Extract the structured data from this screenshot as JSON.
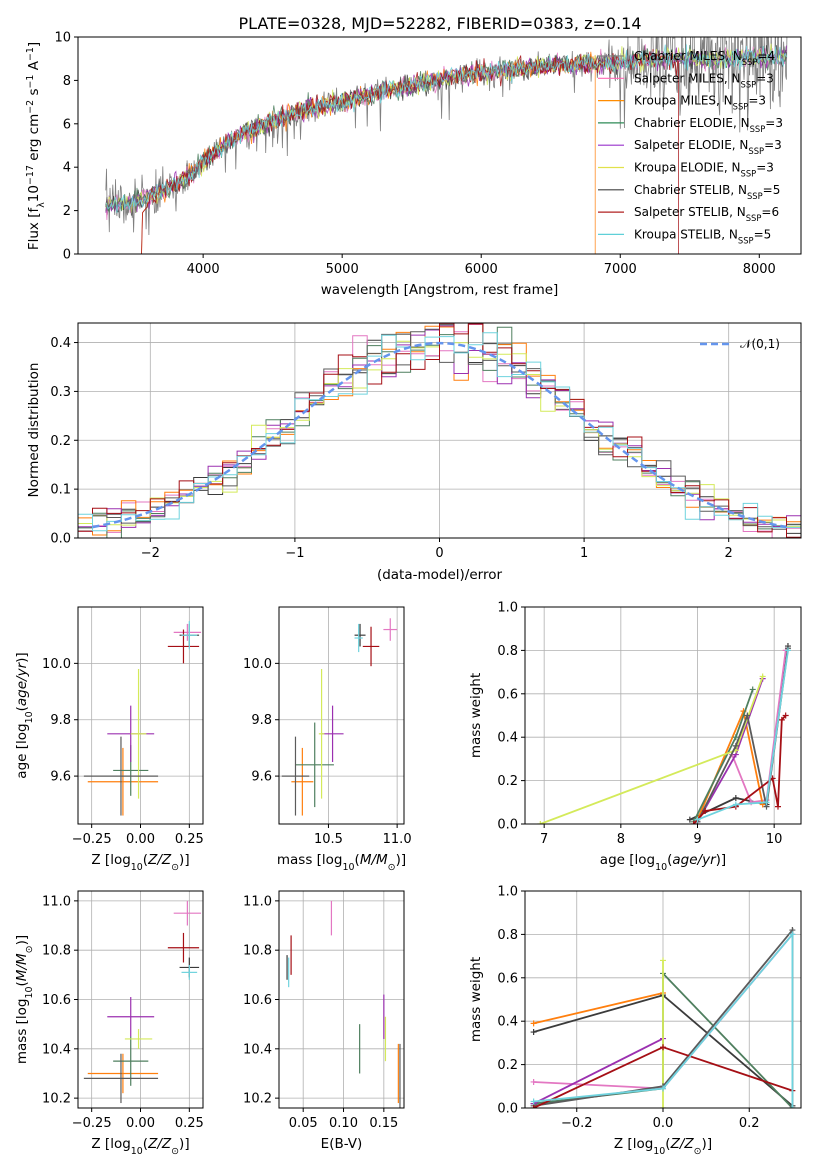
{
  "title": "PLATE=0328, MJD=52282, FIBERID=0383, z=0.14",
  "colors": [
    "#808080",
    "#ff69b4",
    "#ff8c00",
    "#2e8b57",
    "#9932cc",
    "#e1e14b",
    "#404040",
    "#b22222",
    "#5fd0d8"
  ],
  "model_colors": [
    "#3b3b3b",
    "#e377c2",
    "#ff7f0e",
    "#4f7f5f",
    "#9b30b0",
    "#d4ea5a",
    "#5b5b5b",
    "#a50f15",
    "#6fd3de"
  ],
  "legend": [
    {
      "label": "Chabrier MILES, N",
      "sub": "SSP",
      "tail": "=4"
    },
    {
      "label": "Salpeter MILES, N",
      "sub": "SSP",
      "tail": "=3"
    },
    {
      "label": "Kroupa MILES, N",
      "sub": "SSP",
      "tail": "=3"
    },
    {
      "label": "Chabrier ELODIE, N",
      "sub": "SSP",
      "tail": "=3"
    },
    {
      "label": "Salpeter ELODIE, N",
      "sub": "SSP",
      "tail": "=3"
    },
    {
      "label": "Kroupa ELODIE, N",
      "sub": "SSP",
      "tail": "=3"
    },
    {
      "label": "Chabrier STELIB, N",
      "sub": "SSP",
      "tail": "=5"
    },
    {
      "label": "Salpeter STELIB, N",
      "sub": "SSP",
      "tail": "=6"
    },
    {
      "label": "Kroupa STELIB, N",
      "sub": "SSP",
      "tail": "=5"
    }
  ],
  "chart_data": [
    {
      "type": "line",
      "id": "spectrum",
      "xlabel": "wavelength [Angstrom, rest frame]",
      "ylabel": "Flux [f_λ 10^-17 erg cm^-2 s^-1 A^-1]",
      "xlim": [
        3100,
        8300
      ],
      "ylim": [
        0,
        10
      ],
      "xticks": [
        4000,
        5000,
        6000,
        7000,
        8000
      ],
      "yticks": [
        0,
        2,
        4,
        6,
        8,
        10
      ],
      "grid": false,
      "legend_position": "top-right",
      "continuum": {
        "x": [
          3300,
          3500,
          3700,
          3900,
          4100,
          4300,
          4500,
          4700,
          5000,
          5300,
          5600,
          5900,
          6200,
          6500,
          6800,
          7100,
          7400,
          7700,
          8000,
          8200
        ],
        "y": [
          2.2,
          2.4,
          2.9,
          3.6,
          4.8,
          5.6,
          6.1,
          6.6,
          7.0,
          7.5,
          7.9,
          8.3,
          8.5,
          8.7,
          8.8,
          8.9,
          9.0,
          9.0,
          9.1,
          9.1
        ]
      },
      "data_noise": {
        "base": 0.5,
        "blue_extra": 1.2,
        "red_extra": 1.8
      },
      "model_drop": {
        "series": [
          2,
          7
        ],
        "x": [
          6820,
          7420
        ]
      }
    },
    {
      "type": "line",
      "id": "residuals",
      "xlabel": "(data-model)/error",
      "ylabel": "Normed distribution",
      "xlim": [
        -2.5,
        2.5
      ],
      "ylim": [
        0,
        0.44
      ],
      "xticks": [
        -2,
        -1,
        0,
        1,
        2
      ],
      "yticks": [
        0.0,
        0.1,
        0.2,
        0.3,
        0.4
      ],
      "grid": true,
      "legend_position": "top-right",
      "reference_label": "𝒩(0,1)",
      "reference_mean": 0,
      "reference_sigma": 1,
      "bin_width": 0.1,
      "hist_spread": 0.035
    },
    {
      "type": "scatter",
      "id": "age-vs-Z",
      "xlabel": "Z [log10(Z/Z⊙)]",
      "ylabel": "age [log10(age/yr)]",
      "xlim": [
        -0.32,
        0.32
      ],
      "ylim": [
        9.43,
        10.2
      ],
      "xticks": [
        -0.25,
        0.0,
        0.25
      ],
      "yticks": [
        9.6,
        9.8,
        10.0
      ],
      "grid": true,
      "points": [
        {
          "x": 0.25,
          "y": 10.1,
          "xerr": 0.05,
          "yerr": 0.04
        },
        {
          "x": 0.24,
          "y": 10.11,
          "xerr": 0.07,
          "yerr": 0.03
        },
        {
          "x": -0.09,
          "y": 9.58,
          "xerr": 0.18,
          "yerr": 0.12
        },
        {
          "x": -0.05,
          "y": 9.62,
          "xerr": 0.09,
          "yerr": 0.09
        },
        {
          "x": -0.05,
          "y": 9.75,
          "xerr": 0.12,
          "yerr": 0.1
        },
        {
          "x": -0.01,
          "y": 9.75,
          "xerr": 0.04,
          "yerr": 0.23
        },
        {
          "x": -0.1,
          "y": 9.6,
          "xerr": 0.19,
          "yerr": 0.14
        },
        {
          "x": 0.22,
          "y": 10.06,
          "xerr": 0.08,
          "yerr": 0.06
        },
        {
          "x": 0.25,
          "y": 10.1,
          "xerr": 0.04,
          "yerr": 0.05
        }
      ]
    },
    {
      "type": "scatter",
      "id": "age-vs-mass",
      "xlabel": "mass [log10(M/M⊙)]",
      "ylabel": "",
      "xlim": [
        10.14,
        11.05
      ],
      "ylim": [
        9.43,
        10.2
      ],
      "xticks": [
        10.5,
        11.0
      ],
      "yticks": [
        9.6,
        9.8,
        10.0
      ],
      "grid": true,
      "points": [
        {
          "x": 10.73,
          "y": 10.1,
          "xerr": 0.04,
          "yerr": 0.04
        },
        {
          "x": 10.95,
          "y": 10.12,
          "xerr": 0.05,
          "yerr": 0.04
        },
        {
          "x": 10.31,
          "y": 9.58,
          "xerr": 0.08,
          "yerr": 0.12
        },
        {
          "x": 10.4,
          "y": 9.64,
          "xerr": 0.14,
          "yerr": 0.15
        },
        {
          "x": 10.53,
          "y": 9.75,
          "xerr": 0.08,
          "yerr": 0.1
        },
        {
          "x": 10.45,
          "y": 9.75,
          "xerr": 0.02,
          "yerr": 0.23
        },
        {
          "x": 10.26,
          "y": 9.6,
          "xerr": 0.1,
          "yerr": 0.14
        },
        {
          "x": 10.81,
          "y": 10.06,
          "xerr": 0.06,
          "yerr": 0.07
        },
        {
          "x": 10.72,
          "y": 10.09,
          "xerr": 0.03,
          "yerr": 0.05
        }
      ]
    },
    {
      "type": "line",
      "id": "mass-weight-vs-age",
      "xlabel": "age [log10(age/yr)]",
      "ylabel": "mass weight",
      "xlim": [
        6.75,
        10.35
      ],
      "ylim": [
        0,
        1.0
      ],
      "xticks": [
        7,
        8,
        9,
        10
      ],
      "yticks": [
        0.0,
        0.2,
        0.4,
        0.6,
        0.8,
        1.0
      ],
      "grid": true,
      "series": [
        {
          "x": [
            8.9,
            9.5,
            9.9,
            10.18
          ],
          "y": [
            0.02,
            0.12,
            0.09,
            0.82
          ]
        },
        {
          "x": [
            9.45,
            9.7,
            9.9,
            10.15
          ],
          "y": [
            0.32,
            0.1,
            0.11,
            0.8
          ]
        },
        {
          "x": [
            9.0,
            9.6,
            9.85
          ],
          "y": [
            0.02,
            0.52,
            0.09
          ]
        },
        {
          "x": [
            8.95,
            9.5,
            9.72
          ],
          "y": [
            0.01,
            0.4,
            0.62
          ]
        },
        {
          "x": [
            9.0,
            9.5,
            9.85
          ],
          "y": [
            0.01,
            0.32,
            0.67
          ]
        },
        {
          "x": [
            6.95,
            9.5,
            9.85
          ],
          "y": [
            0.0,
            0.34,
            0.68
          ]
        },
        {
          "x": [
            9.0,
            9.5,
            9.65,
            9.9,
            10.18
          ],
          "y": [
            0.01,
            0.36,
            0.5,
            0.08,
            0.81
          ]
        },
        {
          "x": [
            8.95,
            9.1,
            9.5,
            9.98,
            10.05,
            10.1,
            10.15
          ],
          "y": [
            0.0,
            0.06,
            0.08,
            0.21,
            0.08,
            0.48,
            0.5
          ]
        },
        {
          "x": [
            9.0,
            9.5,
            9.9,
            10.18
          ],
          "y": [
            0.02,
            0.09,
            0.1,
            0.8
          ]
        }
      ]
    },
    {
      "type": "scatter",
      "id": "mass-vs-Z",
      "xlabel": "Z [log10(Z/Z⊙)]",
      "ylabel": "mass [log10(M/M⊙)]",
      "xlim": [
        -0.32,
        0.32
      ],
      "ylim": [
        10.16,
        11.04
      ],
      "xticks": [
        -0.25,
        0.0,
        0.25
      ],
      "yticks": [
        10.2,
        10.4,
        10.6,
        10.8,
        11.0
      ],
      "grid": true,
      "points": [
        {
          "x": 0.25,
          "y": 10.73,
          "xerr": 0.05,
          "yerr": 0.04
        },
        {
          "x": 0.24,
          "y": 10.95,
          "xerr": 0.07,
          "yerr": 0.05
        },
        {
          "x": -0.09,
          "y": 10.3,
          "xerr": 0.18,
          "yerr": 0.08
        },
        {
          "x": -0.05,
          "y": 10.35,
          "xerr": 0.09,
          "yerr": 0.1
        },
        {
          "x": -0.05,
          "y": 10.53,
          "xerr": 0.12,
          "yerr": 0.08
        },
        {
          "x": -0.01,
          "y": 10.44,
          "xerr": 0.07,
          "yerr": 0.04
        },
        {
          "x": -0.1,
          "y": 10.28,
          "xerr": 0.19,
          "yerr": 0.1
        },
        {
          "x": 0.22,
          "y": 10.81,
          "xerr": 0.08,
          "yerr": 0.06
        },
        {
          "x": 0.25,
          "y": 10.71,
          "xerr": 0.04,
          "yerr": 0.03
        }
      ]
    },
    {
      "type": "scatter",
      "id": "mass-vs-ebv",
      "xlabel": "E(B-V)",
      "ylabel": "",
      "xlim": [
        0.02,
        0.175
      ],
      "ylim": [
        10.16,
        11.04
      ],
      "xticks": [
        0.05,
        0.1,
        0.15
      ],
      "yticks": [
        10.2,
        10.4,
        10.6,
        10.8,
        11.0
      ],
      "grid": true,
      "points": [
        {
          "x": 0.03,
          "y": 10.73,
          "xerr": 0,
          "yerr": 0.05
        },
        {
          "x": 0.085,
          "y": 10.93,
          "xerr": 0,
          "yerr": 0.07
        },
        {
          "x": 0.168,
          "y": 10.3,
          "xerr": 0,
          "yerr": 0.12
        },
        {
          "x": 0.12,
          "y": 10.4,
          "xerr": 0,
          "yerr": 0.1
        },
        {
          "x": 0.15,
          "y": 10.53,
          "xerr": 0,
          "yerr": 0.09
        },
        {
          "x": 0.152,
          "y": 10.44,
          "xerr": 0,
          "yerr": 0.09
        },
        {
          "x": 0.17,
          "y": 10.29,
          "xerr": 0,
          "yerr": 0.13
        },
        {
          "x": 0.035,
          "y": 10.78,
          "xerr": 0,
          "yerr": 0.08
        },
        {
          "x": 0.032,
          "y": 10.71,
          "xerr": 0,
          "yerr": 0.06
        }
      ]
    },
    {
      "type": "line",
      "id": "mass-weight-vs-Z",
      "xlabel": "Z [log10(Z/Z⊙)]",
      "ylabel": "mass weight",
      "xlim": [
        -0.32,
        0.32
      ],
      "ylim": [
        0,
        1.0
      ],
      "xticks": [
        -0.2,
        0.0,
        0.2
      ],
      "yticks": [
        0.0,
        0.2,
        0.4,
        0.6,
        0.8,
        1.0
      ],
      "grid": true,
      "series": [
        {
          "x": [
            -0.3,
            0.0,
            0.3
          ],
          "y": [
            0.35,
            0.52,
            0.01
          ]
        },
        {
          "x": [
            -0.3,
            0.0,
            0.3
          ],
          "y": [
            0.12,
            0.09,
            0.8
          ]
        },
        {
          "x": [
            -0.3,
            0.0
          ],
          "y": [
            0.39,
            0.53
          ]
        },
        {
          "x": [
            -0.3,
            0.0,
            0.0,
            0.3
          ],
          "y": [
            0.02,
            0.09,
            0.62,
            0.0
          ]
        },
        {
          "x": [
            -0.3,
            0.0
          ],
          "y": [
            0.02,
            0.32
          ]
        },
        {
          "x": [
            0.0,
            0.0
          ],
          "y": [
            0.0,
            0.68
          ]
        },
        {
          "x": [
            -0.3,
            0.0,
            0.3,
            0.3
          ],
          "y": [
            0.01,
            0.1,
            0.82,
            0.01
          ]
        },
        {
          "x": [
            -0.3,
            0.0,
            0.3
          ],
          "y": [
            0.0,
            0.28,
            0.08
          ]
        },
        {
          "x": [
            -0.3,
            0.0,
            0.3,
            0.3
          ],
          "y": [
            0.03,
            0.09,
            0.8,
            0.0
          ]
        }
      ]
    }
  ]
}
